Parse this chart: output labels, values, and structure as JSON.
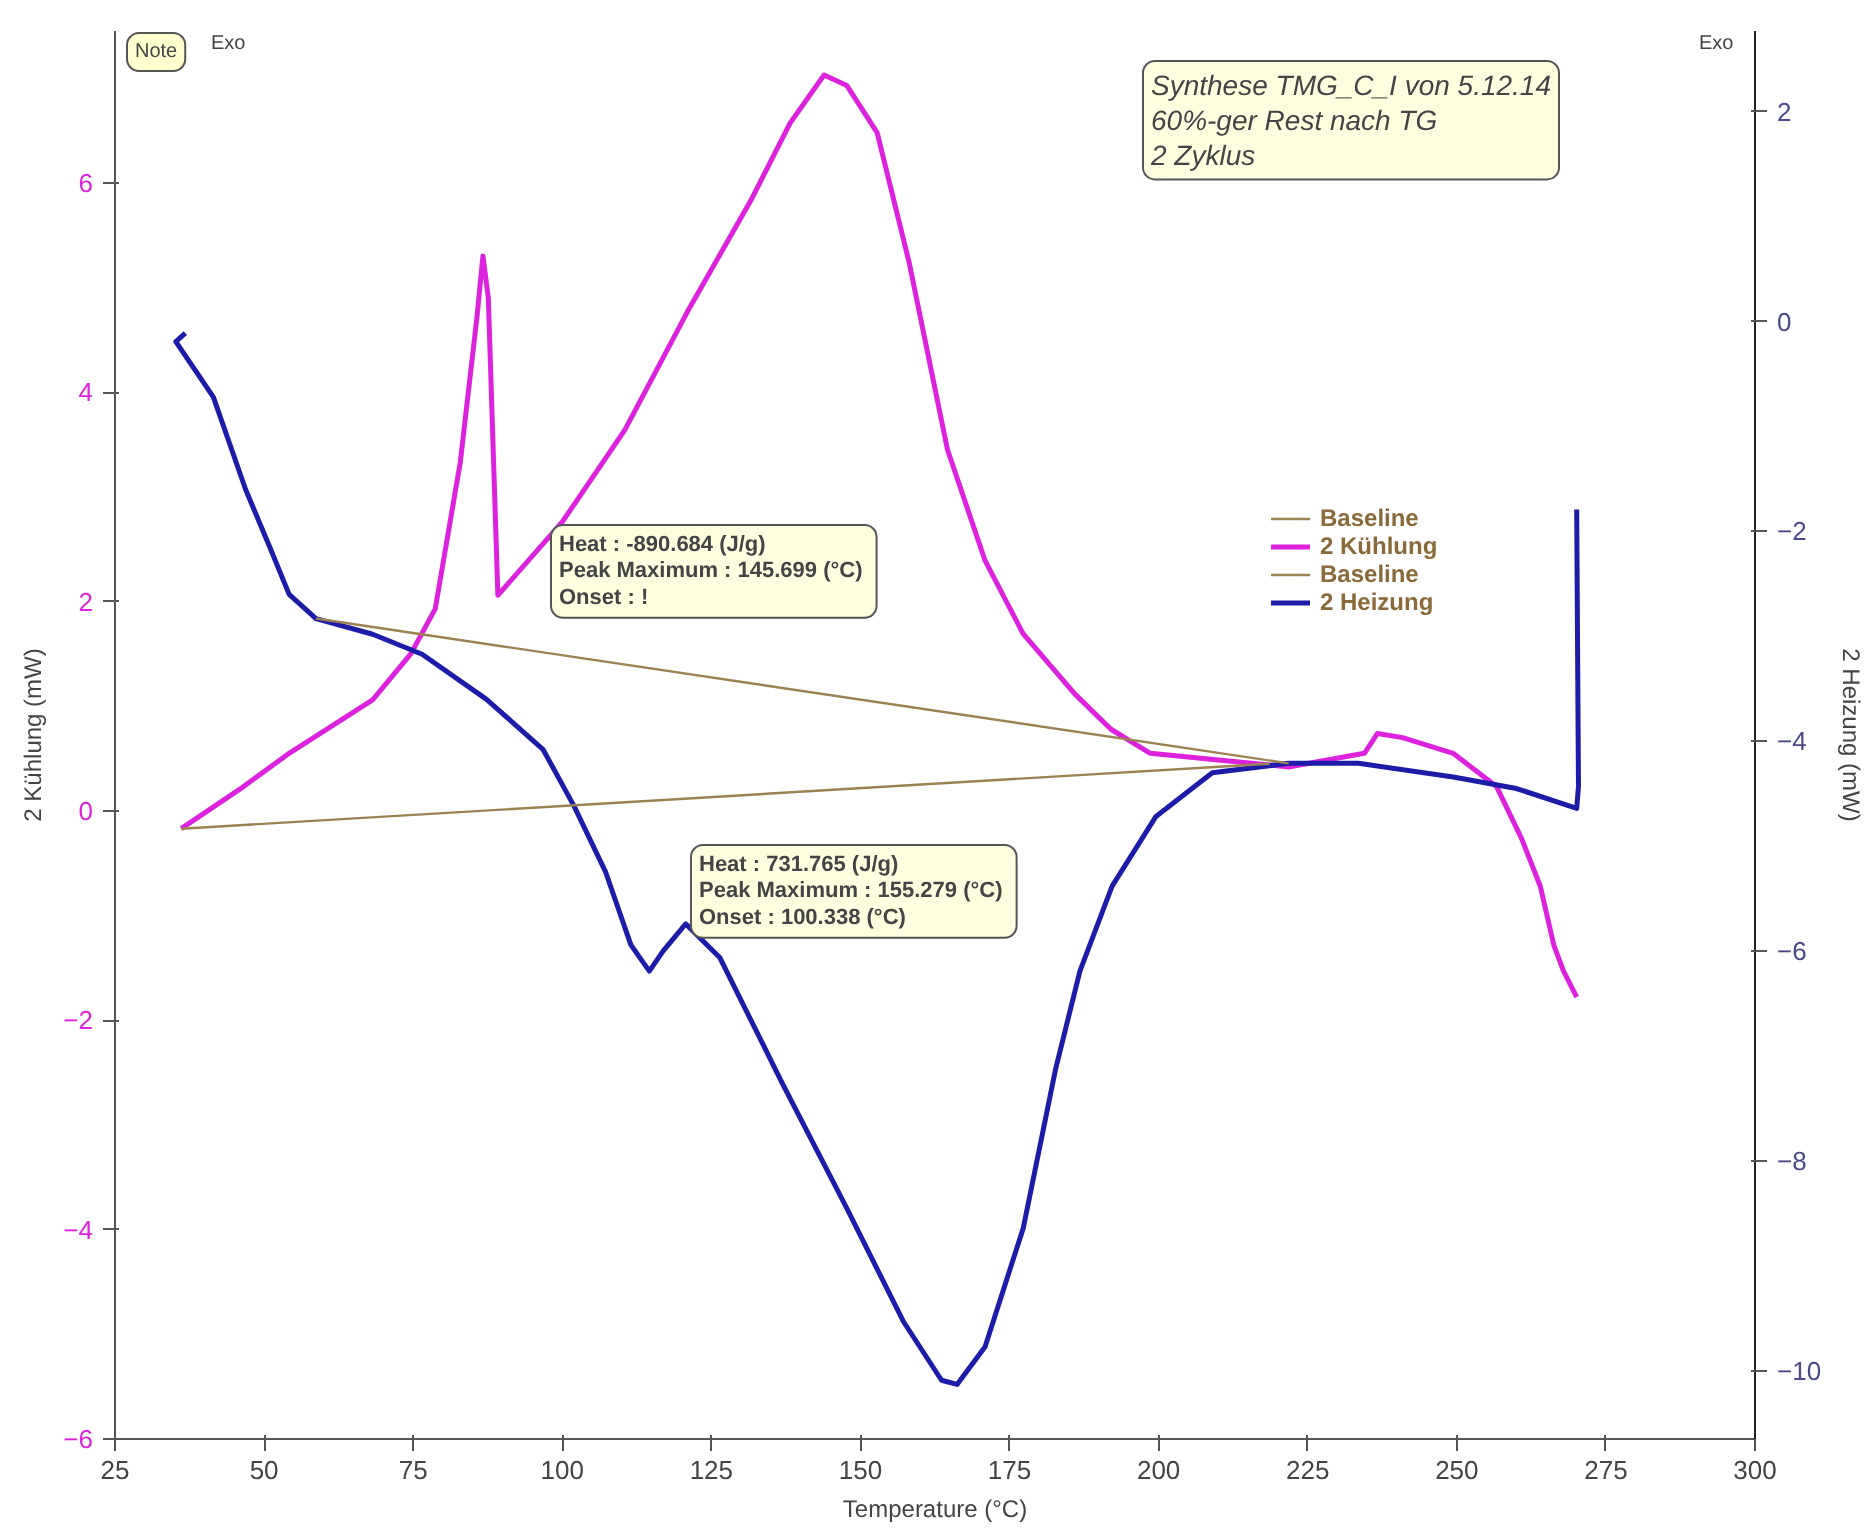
{
  "chart_data": {
    "type": "line",
    "xlabel": "Temperature (°C)",
    "ylabel": "2 Kühlung (mW)",
    "y2label": "2 Heizung (mW)",
    "xlim": [
      25,
      300
    ],
    "xticks": [
      25,
      50,
      75,
      100,
      125,
      150,
      175,
      200,
      225,
      250,
      275,
      300
    ],
    "ylim": [
      -6,
      7.45
    ],
    "yticks": [
      -6,
      -4,
      -2,
      0,
      2,
      4,
      6
    ],
    "y2lim": [
      -10.65,
      2.77
    ],
    "y2ticks": [
      -10,
      -8,
      -6,
      -4,
      -2,
      0,
      2
    ],
    "grid": false,
    "legend": "right",
    "line_style": "solid",
    "marker": "none",
    "series": [
      {
        "name": "Baseline",
        "color": "#9c8253",
        "x": [
          36.1,
          218.6
        ],
        "values": [
          -0.17,
          0.45
        ]
      },
      {
        "name": "2 Kühlung",
        "color": "#dd22dd",
        "x": [
          36.1,
          46,
          54.2,
          68.2,
          74.6,
          78.7,
          82.9,
          85.7,
          86.7,
          87.6,
          89.2,
          100,
          110.5,
          121,
          131.8,
          138.2,
          143.9,
          147.7,
          152.8,
          158.2,
          164.6,
          170.9,
          177.3,
          185.9,
          192,
          198.6,
          221.8,
          234.5,
          236.7,
          240.9,
          249.4,
          256.7,
          260.9,
          264,
          266.3,
          267.9,
          270.1
        ],
        "values": [
          -0.17,
          0.21,
          0.55,
          1.06,
          1.5,
          1.93,
          3.33,
          4.72,
          5.3,
          4.9,
          2.06,
          2.76,
          3.64,
          4.77,
          5.85,
          6.57,
          7.03,
          6.93,
          6.48,
          5.23,
          3.45,
          2.39,
          1.69,
          1.12,
          0.78,
          0.55,
          0.42,
          0.55,
          0.74,
          0.7,
          0.55,
          0.23,
          -0.27,
          -0.72,
          -1.29,
          -1.53,
          -1.78
        ]
      },
      {
        "name": "Baseline",
        "color": "#9c8253",
        "axis": "y2",
        "x": [
          58.7,
          221.8
        ],
        "values": [
          -2.83,
          -4.21
        ]
      },
      {
        "name": "2 Heizung",
        "color": "#1c1ca8",
        "axis": "y2",
        "x": [
          36.8,
          35.2,
          41.5,
          46.9,
          51.1,
          54.2,
          58.7,
          68.2,
          76.5,
          87.3,
          96.8,
          102,
          107.3,
          111.5,
          114.6,
          116.9,
          120.7,
          126.4,
          136.9,
          147.7,
          157.2,
          163.6,
          166.2,
          170.9,
          177.3,
          182.7,
          186.8,
          192.2,
          199.5,
          209,
          221.8,
          233.5,
          249.4,
          260,
          270.1,
          270.4,
          270.1
        ],
        "values": [
          -0.11,
          -0.19,
          -0.72,
          -1.6,
          -2.17,
          -2.6,
          -2.83,
          -2.98,
          -3.17,
          -3.6,
          -4.08,
          -4.62,
          -5.25,
          -5.94,
          -6.19,
          -6,
          -5.74,
          -6.06,
          -7.26,
          -8.45,
          -9.53,
          -10.09,
          -10.13,
          -9.77,
          -8.64,
          -7.13,
          -6.19,
          -5.38,
          -4.72,
          -4.3,
          -4.21,
          -4.21,
          -4.34,
          -4.45,
          -4.64,
          -4.43,
          -1.79
        ]
      }
    ],
    "annotations": [
      "Note",
      "Exo",
      "Exo",
      "Synthese TMG_C_I von 5.12.14\n60%-ger Rest nach TG\n2 Zyklus",
      "Heat :  -890.684 (J/g)\nPeak Maximum :  145.699 (°C)\nOnset :  !",
      "Heat :  731.765 (J/g)\nPeak Maximum :  155.279 (°C)\nOnset :  100.338 (°C)"
    ]
  }
}
